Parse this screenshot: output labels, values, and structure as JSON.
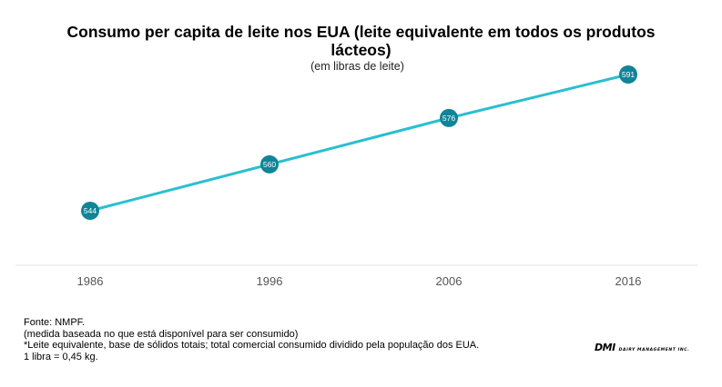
{
  "title_line1": "Consumo per capita de leite nos EUA (leite equivalente em todos os produtos",
  "title_line2": "lácteos)",
  "subtitle": "(em libras de leite)",
  "chart_data": {
    "type": "line",
    "title": "Consumo per capita de leite nos EUA (leite equivalente em todos os produtos lácteos)",
    "subtitle": "(em libras de leite)",
    "categories": [
      "1986",
      "1996",
      "2006",
      "2016"
    ],
    "values": [
      544,
      560,
      576,
      591
    ],
    "data_labels": [
      "544",
      "560",
      "576",
      "591"
    ],
    "xlabel": "",
    "ylabel": "",
    "ylim": [
      528,
      600
    ],
    "line_color": "#29bfd0",
    "marker_color": "#0f8597",
    "grid": false
  },
  "footnotes": {
    "source": "Fonte: NMPF.",
    "note1": "(medida baseada no que está disponível para ser consumido)",
    "note2": "*Leite equivalente, base de sólidos totais; total comercial consumido dividido pela população dos EUA.",
    "note3": "1 libra = 0,45 kg."
  },
  "logo": {
    "name": "DMI",
    "tagline": "DAIRY MANAGEMENT INC."
  }
}
